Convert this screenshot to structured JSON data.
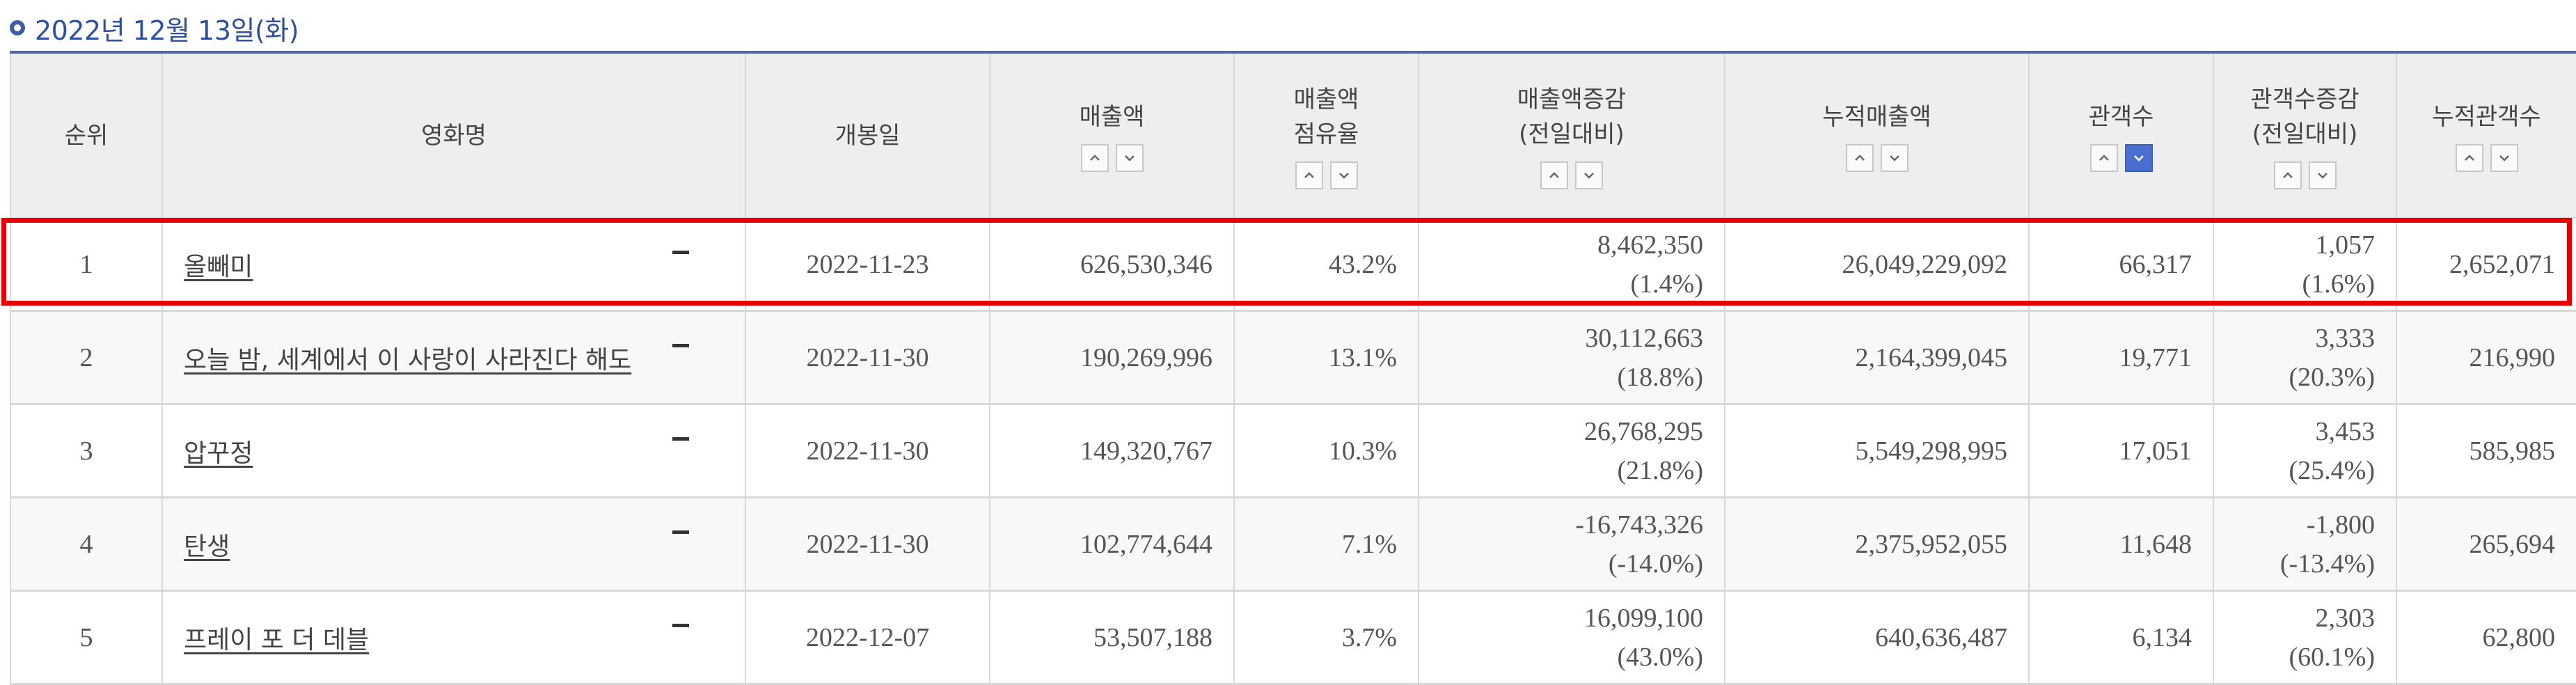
{
  "header": {
    "date": "2022년 12월 13일(화)"
  },
  "columns": {
    "rank": "순위",
    "movie": "영화명",
    "open_date": "개봉일",
    "sales": "매출액",
    "share_1": "매출액",
    "share_2": "점유율",
    "sales_change_1": "매출액증감",
    "sales_change_2": "(전일대비)",
    "cum_sales": "누적매출액",
    "audience": "관객수",
    "audience_change_1": "관객수증감",
    "audience_change_2": "(전일대비)",
    "cum_audience": "누적관객수"
  },
  "sort": {
    "active_column": "audience",
    "active_direction": "down"
  },
  "rows": [
    {
      "rank": "1",
      "movie": "올빼미",
      "open_date": "2022-11-23",
      "sales": "626,530,346",
      "share": "43.2%",
      "sales_change": "8,462,350",
      "sales_change_pct": "(1.4%)",
      "cum_sales": "26,049,229,092",
      "audience": "66,317",
      "audience_change": "1,057",
      "audience_change_pct": "(1.6%)",
      "cum_audience": "2,652,071"
    },
    {
      "rank": "2",
      "movie": "오늘 밤, 세계에서 이 사랑이 사라진다 해도",
      "open_date": "2022-11-30",
      "sales": "190,269,996",
      "share": "13.1%",
      "sales_change": "30,112,663",
      "sales_change_pct": "(18.8%)",
      "cum_sales": "2,164,399,045",
      "audience": "19,771",
      "audience_change": "3,333",
      "audience_change_pct": "(20.3%)",
      "cum_audience": "216,990"
    },
    {
      "rank": "3",
      "movie": "압꾸정",
      "open_date": "2022-11-30",
      "sales": "149,320,767",
      "share": "10.3%",
      "sales_change": "26,768,295",
      "sales_change_pct": "(21.8%)",
      "cum_sales": "5,549,298,995",
      "audience": "17,051",
      "audience_change": "3,453",
      "audience_change_pct": "(25.4%)",
      "cum_audience": "585,985"
    },
    {
      "rank": "4",
      "movie": "탄생",
      "open_date": "2022-11-30",
      "sales": "102,774,644",
      "share": "7.1%",
      "sales_change": "-16,743,326",
      "sales_change_pct": "(-14.0%)",
      "cum_sales": "2,375,952,055",
      "audience": "11,648",
      "audience_change": "-1,800",
      "audience_change_pct": "(-13.4%)",
      "cum_audience": "265,694"
    },
    {
      "rank": "5",
      "movie": "프레이 포 더 데블",
      "open_date": "2022-12-07",
      "sales": "53,507,188",
      "share": "3.7%",
      "sales_change": "16,099,100",
      "sales_change_pct": "(43.0%)",
      "cum_sales": "640,636,487",
      "audience": "6,134",
      "audience_change": "2,303",
      "audience_change_pct": "(60.1%)",
      "cum_audience": "62,800"
    }
  ],
  "highlight": {
    "row_rank": "1",
    "color": "#e60000"
  },
  "colors": {
    "accent": "#2d4f9e",
    "rule": "#4f66ad",
    "sort_active": "#4a6fd0",
    "header_bg": "#eeeeee"
  },
  "icons": {
    "bullet": "circle-bullet-icon",
    "sort_up": "sort-up-icon",
    "sort_down": "sort-down-icon",
    "row_minus": "minus-icon"
  }
}
